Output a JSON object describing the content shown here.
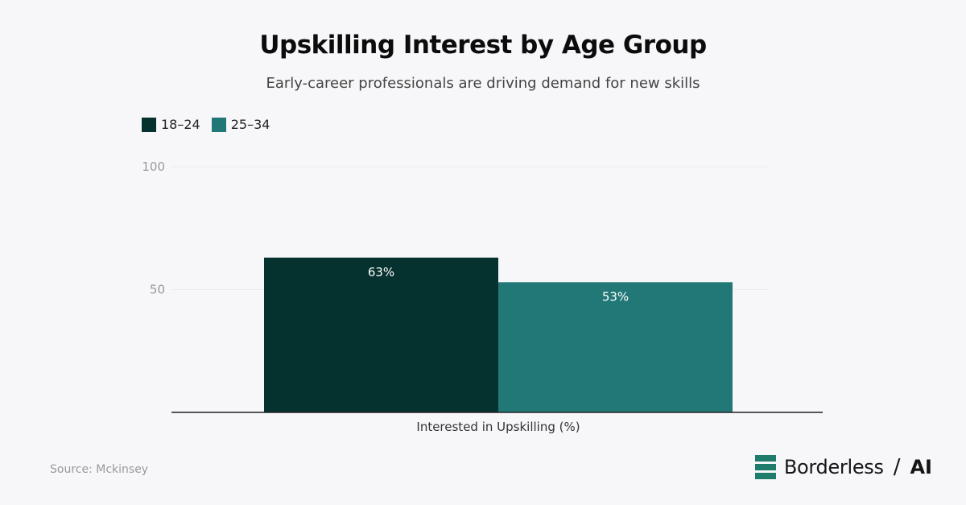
{
  "title": "Upskilling Interest by Age Group",
  "subtitle": "Early-career professionals are driving demand for new skills",
  "source": "Source: Mckinsey",
  "brand": {
    "name": "Borderless",
    "separator": "/",
    "suffix": "AI",
    "logo_icon": "borderless-logo-icon",
    "logo_color": "#1f7b6b"
  },
  "chart_data": {
    "type": "bar",
    "categories": [
      "Interested in Upskilling (%)"
    ],
    "series": [
      {
        "name": "18–24",
        "values": [
          63
        ],
        "color": "#05312e",
        "label": "63%"
      },
      {
        "name": "25–34",
        "values": [
          53
        ],
        "color": "#227876",
        "label": "53%"
      }
    ],
    "title": "Upskilling Interest by Age Group",
    "subtitle": "Early-career professionals are driving demand for new skills",
    "xlabel": "Interested in Upskilling (%)",
    "ylabel": "",
    "ylim": [
      0,
      100
    ],
    "yticks": [
      50,
      100
    ],
    "grid": true,
    "legend_position": "top-left"
  }
}
